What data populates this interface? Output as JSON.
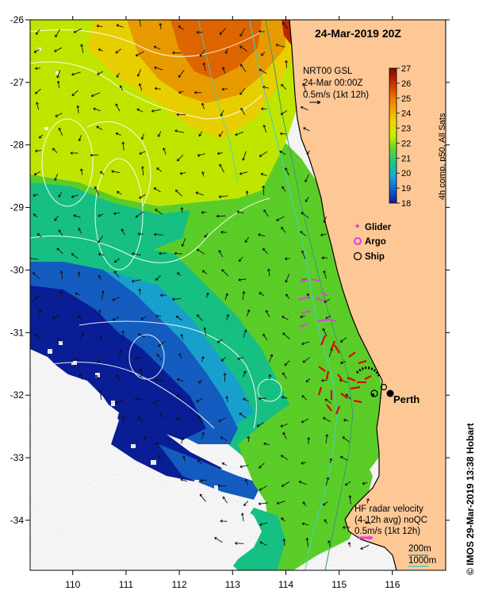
{
  "map": {
    "title": "24-Mar-2019 20Z",
    "product_note": [
      "NRT00 GSL",
      "24-Mar 00:00Z",
      "0.5m/s (1kt 12h)"
    ],
    "colorbar": {
      "label": "4h comp, p50, All Sats",
      "min": 18,
      "max": 27,
      "ticks": [
        "27",
        "26",
        "25",
        "24",
        "23",
        "22",
        "21",
        "20",
        "19",
        "18"
      ],
      "colors": [
        "#7a0a00",
        "#c12a00",
        "#e86a00",
        "#f2a200",
        "#f2d800",
        "#c8f000",
        "#5fd62a",
        "#18c889",
        "#1aa7d6",
        "#1560c8",
        "#0a1f9c"
      ]
    },
    "axes": {
      "lon_ticks": [
        "110",
        "111",
        "112",
        "113",
        "114",
        "115",
        "116"
      ],
      "lat_ticks": [
        "-26",
        "-27",
        "-28",
        "-29",
        "-30",
        "-31",
        "-32",
        "-33",
        "-34"
      ],
      "lon_range": [
        109.2,
        117.0
      ],
      "lat_range": [
        -34.8,
        -26.0
      ]
    },
    "legend": [
      {
        "label": "Glider",
        "symbol": "star",
        "color": "#e23ee2"
      },
      {
        "label": "Argo",
        "symbol": "ring",
        "color": "#e23ee2"
      },
      {
        "label": "Ship",
        "symbol": "ring",
        "color": "#000000"
      }
    ],
    "city": {
      "name": "Perth",
      "lon": 115.86,
      "lat": -31.95
    },
    "hf_radar_note": [
      "HF radar velocity",
      "(4-12h avg) noQC",
      "0.5m/s (1kt 12h)"
    ],
    "isobaths": [
      "200m",
      "1000m"
    ],
    "credit": "© IMOS 29-Mar-2019 13:38 Hobart",
    "colors": {
      "land": "#fdc896",
      "contour": "#ffffff",
      "isobath_200": "#3a9a7a",
      "isobath_1000": "#3fd3c8",
      "radar_arrow": "#e00000",
      "glider_track": "#e23ee2"
    }
  }
}
